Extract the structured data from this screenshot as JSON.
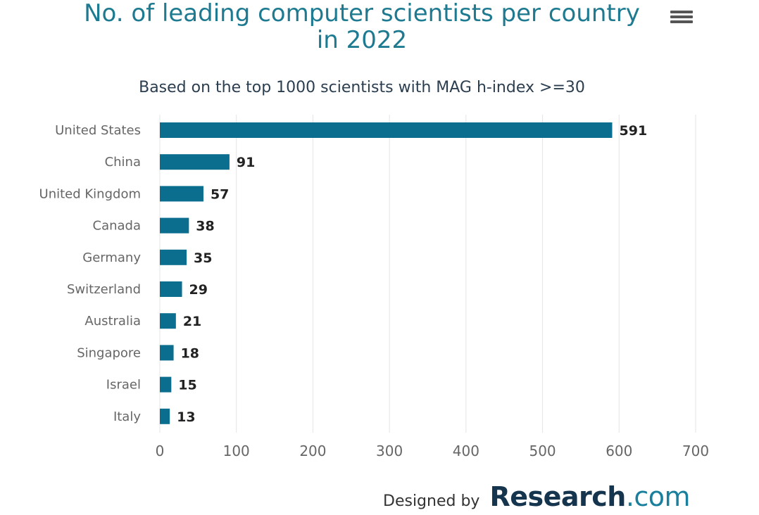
{
  "chart_data": {
    "type": "bar",
    "orientation": "horizontal",
    "title": "No. of leading computer scientists per country in 2022",
    "title_lines": [
      "No. of leading computer scientists per country",
      "in 2022"
    ],
    "subtitle": "Based on the top 1000 scientists with MAG h-index >=30",
    "categories": [
      "United States",
      "China",
      "United Kingdom",
      "Canada",
      "Germany",
      "Switzerland",
      "Australia",
      "Singapore",
      "Israel",
      "Italy"
    ],
    "values": [
      591,
      91,
      57,
      38,
      35,
      29,
      21,
      18,
      15,
      13
    ],
    "xlim": [
      0,
      700
    ],
    "xticks": [
      0,
      100,
      200,
      300,
      400,
      500,
      600,
      700
    ],
    "grid": true,
    "bar_color": "#0b6e8e",
    "data_labels": true
  },
  "footer": {
    "designed_by": "Designed by",
    "brand_main": "Research",
    "brand_suffix": ".com"
  },
  "menu_icon": "hamburger-menu-icon"
}
